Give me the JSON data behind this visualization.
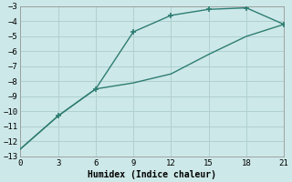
{
  "title": "",
  "xlabel": "Humidex (Indice chaleur)",
  "background_color": "#cde8e8",
  "grid_color": "#b0d0d0",
  "line_color": "#2e7d72",
  "x_upper": [
    0,
    3,
    6,
    9,
    12,
    15,
    18,
    21
  ],
  "y_upper": [
    -12.5,
    -10.3,
    -8.5,
    -4.7,
    -3.6,
    -3.2,
    -3.1,
    -4.2
  ],
  "x_lower": [
    0,
    3,
    6,
    9,
    12,
    15,
    18,
    21
  ],
  "y_lower": [
    -12.5,
    -10.3,
    -8.5,
    -8.1,
    -7.5,
    -6.2,
    -5.0,
    -4.2
  ],
  "marker_x": [
    3,
    6,
    9,
    12,
    15,
    18,
    21
  ],
  "marker_y_upper": [
    -10.3,
    -8.5,
    -4.7,
    -3.6,
    -3.2,
    -3.1,
    -4.2
  ],
  "xlim": [
    0,
    21
  ],
  "ylim": [
    -13,
    -3
  ],
  "xticks": [
    0,
    3,
    6,
    9,
    12,
    15,
    18,
    21
  ],
  "yticks": [
    -3,
    -4,
    -5,
    -6,
    -7,
    -8,
    -9,
    -10,
    -11,
    -12,
    -13
  ],
  "tick_fontsize": 6.5,
  "xlabel_fontsize": 7
}
